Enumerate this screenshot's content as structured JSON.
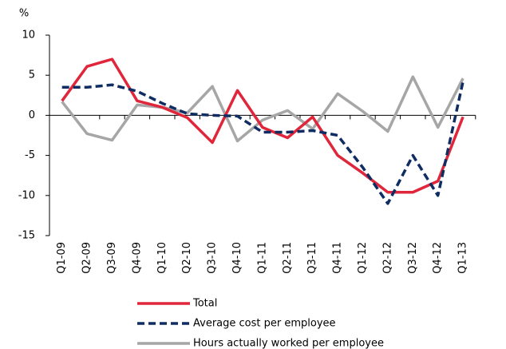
{
  "chart_data": {
    "type": "line",
    "y_label": "%",
    "categories": [
      "Q1-09",
      "Q2-09",
      "Q3-09",
      "Q4-09",
      "Q1-10",
      "Q2-10",
      "Q3-10",
      "Q4-10",
      "Q1-11",
      "Q2-11",
      "Q3-11",
      "Q4-11",
      "Q1-12",
      "Q2-12",
      "Q3-12",
      "Q4-12",
      "Q1-13"
    ],
    "series": [
      {
        "name": "Total",
        "color": "#e0263a",
        "dash": "solid",
        "values": [
          1.8,
          6.1,
          7.0,
          1.8,
          1.0,
          -0.3,
          -3.4,
          3.1,
          -1.5,
          -2.8,
          -0.2,
          -5.0,
          -7.2,
          -9.6,
          -9.6,
          -8.2,
          -0.2
        ]
      },
      {
        "name": "Average cost per employee",
        "color": "#0f2d63",
        "dash": "dashed",
        "values": [
          3.5,
          3.5,
          3.8,
          3.0,
          1.5,
          0.2,
          0.0,
          -0.1,
          -2.1,
          -2.1,
          -1.9,
          -2.5,
          -6.5,
          -11.0,
          -5.0,
          -10.0,
          4.2
        ]
      },
      {
        "name": "Hours actually worked per employee",
        "color": "#a6a6a6",
        "dash": "solid",
        "values": [
          1.7,
          -2.3,
          -3.1,
          1.3,
          1.0,
          0.3,
          3.6,
          -3.2,
          -0.6,
          0.6,
          -1.7,
          2.7,
          0.5,
          -2.0,
          4.8,
          -1.5,
          4.6
        ]
      }
    ],
    "ylim": [
      -15,
      10
    ],
    "yticks": [
      -15,
      -10,
      -5,
      0,
      5,
      10
    ],
    "grid": false
  }
}
